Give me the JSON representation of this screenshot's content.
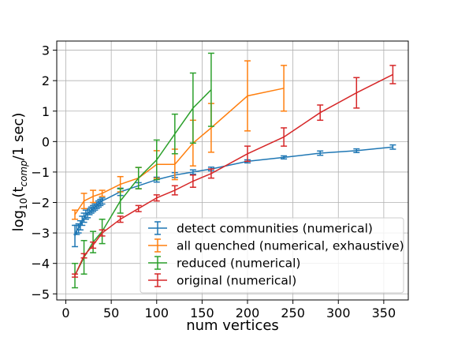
{
  "chart_data": {
    "type": "line",
    "xlabel": "num vertices",
    "ylabel_parts": {
      "prefix": "log",
      "base": "10",
      "open": "(t",
      "sub": "comp",
      "close": "/1 sec)"
    },
    "xlim": [
      -10,
      377
    ],
    "ylim": [
      -5.2,
      3.3
    ],
    "xticks": [
      0,
      50,
      100,
      150,
      200,
      250,
      300,
      350
    ],
    "yticks": [
      -5,
      -4,
      -3,
      -2,
      -1,
      0,
      1,
      2,
      3
    ],
    "grid": true,
    "legend_position": "lower right",
    "series": [
      {
        "name": "detect communities (numerical)",
        "color": "#1f77b4",
        "x": [
          10,
          12,
          14,
          16,
          18,
          20,
          22,
          24,
          26,
          28,
          30,
          32,
          34,
          36,
          38,
          40,
          60,
          80,
          100,
          120,
          140,
          160,
          200,
          240,
          280,
          320,
          360
        ],
        "y": [
          -3.1,
          -2.9,
          -2.85,
          -2.75,
          -2.6,
          -2.5,
          -2.4,
          -2.35,
          -2.3,
          -2.25,
          -2.2,
          -2.15,
          -2.1,
          -2.05,
          -2.0,
          -1.95,
          -1.65,
          -1.45,
          -1.25,
          -1.1,
          -1.0,
          -0.9,
          -0.65,
          -0.52,
          -0.38,
          -0.3,
          -0.18
        ],
        "err": [
          0.35,
          0.15,
          0.15,
          0.15,
          0.15,
          0.15,
          0.15,
          0.15,
          0.1,
          0.1,
          0.1,
          0.1,
          0.1,
          0.1,
          0.1,
          0.1,
          0.12,
          0.1,
          0.08,
          0.08,
          0.07,
          0.06,
          0.05,
          0.05,
          0.07,
          0.06,
          0.07
        ]
      },
      {
        "name": "all quenched (numerical, exhaustive)",
        "color": "#ff7f0e",
        "x": [
          10,
          20,
          30,
          40,
          60,
          80,
          100,
          120,
          140,
          160,
          200,
          240
        ],
        "y": [
          -2.4,
          -1.95,
          -1.8,
          -1.7,
          -1.4,
          -1.2,
          -0.75,
          -0.75,
          -0.05,
          0.45,
          1.5,
          1.75
        ],
        "err": [
          0.15,
          0.25,
          0.2,
          0.1,
          0.25,
          0.35,
          0.45,
          0.5,
          0.75,
          0.8,
          1.15,
          0.75
        ]
      },
      {
        "name": "reduced (numerical)",
        "color": "#2ca02c",
        "x": [
          10,
          20,
          30,
          40,
          60,
          80,
          100,
          120,
          140,
          160
        ],
        "y": [
          -4.4,
          -3.8,
          -3.3,
          -2.95,
          -1.95,
          -1.2,
          -0.6,
          0.25,
          1.1,
          1.7
        ],
        "err": [
          0.4,
          0.55,
          0.35,
          0.4,
          0.4,
          0.35,
          0.65,
          0.65,
          1.15,
          1.2
        ]
      },
      {
        "name": "original (numerical)",
        "color": "#d62728",
        "x": [
          10,
          20,
          30,
          40,
          60,
          80,
          100,
          120,
          140,
          160,
          200,
          240,
          280,
          320,
          360
        ],
        "y": [
          -4.4,
          -3.75,
          -3.4,
          -3.0,
          -2.55,
          -2.2,
          -1.85,
          -1.6,
          -1.3,
          -1.05,
          -0.4,
          0.15,
          0.95,
          1.6,
          2.2
        ],
        "err": [
          0.05,
          0.07,
          0.1,
          0.1,
          0.1,
          0.1,
          0.1,
          0.15,
          0.2,
          0.15,
          0.25,
          0.3,
          0.25,
          0.5,
          0.3
        ]
      }
    ]
  }
}
